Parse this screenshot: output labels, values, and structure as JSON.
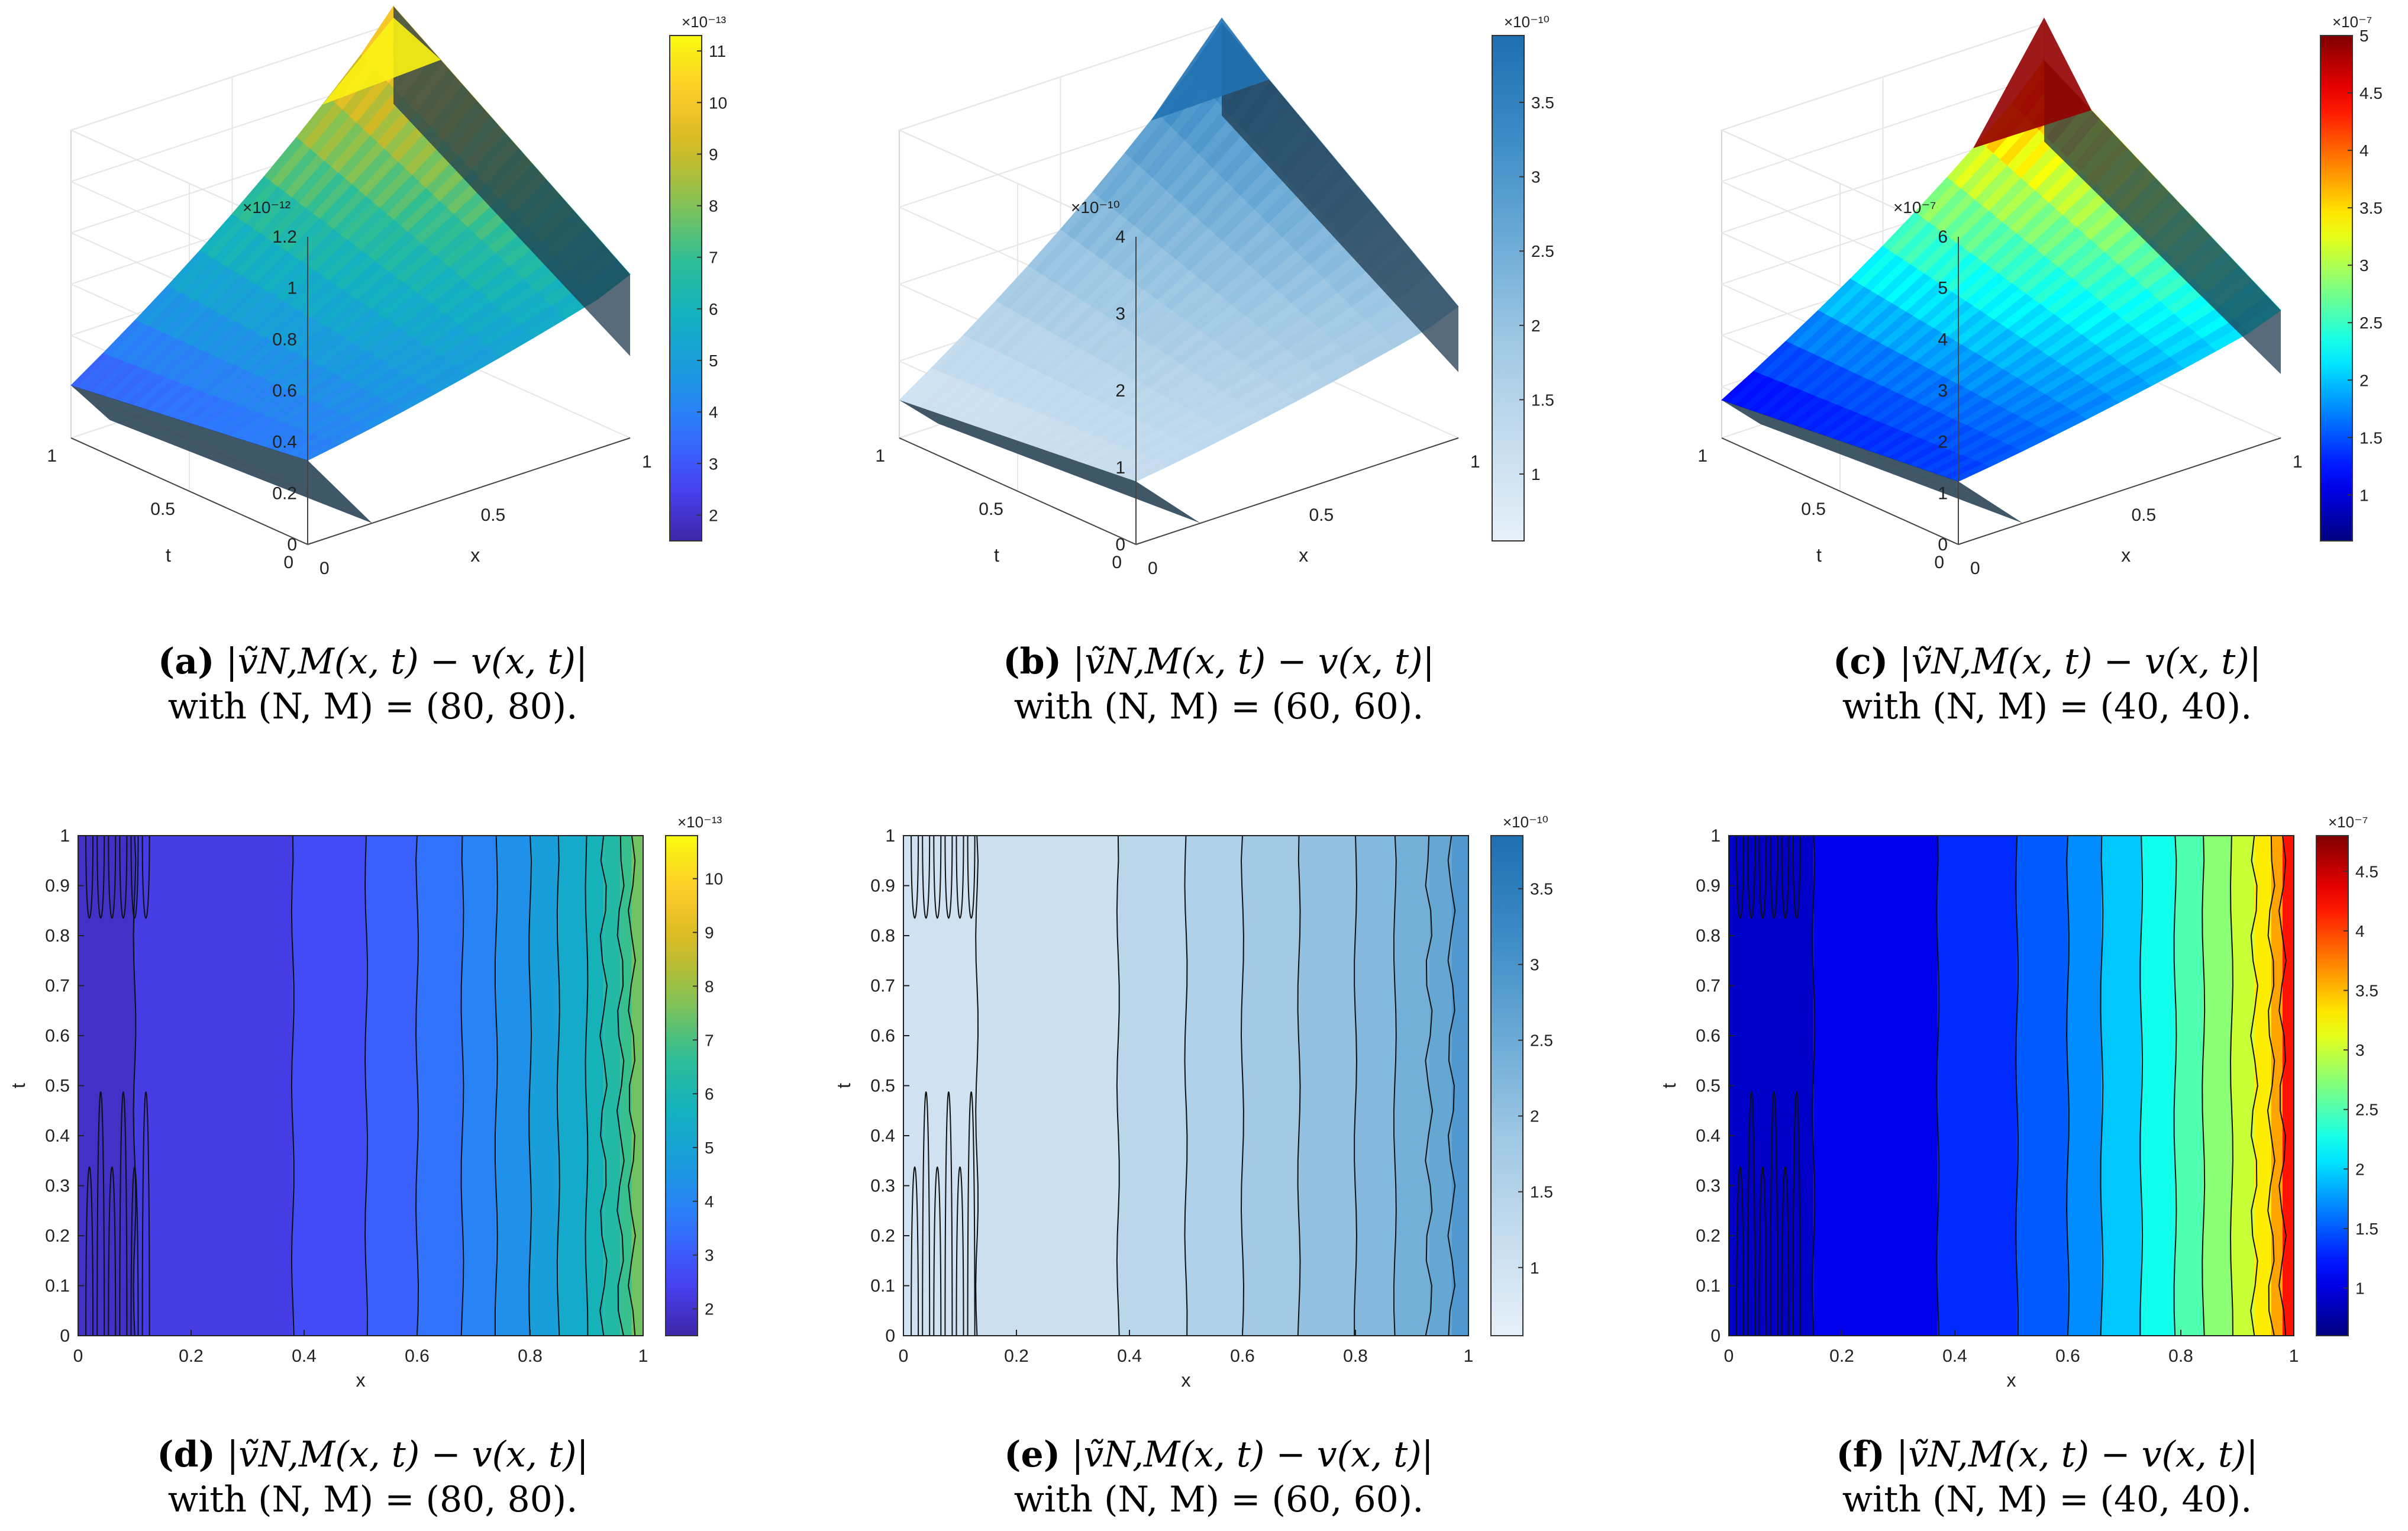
{
  "figure": {
    "panels": [
      {
        "id": "a",
        "caption": {
          "label": "(a)",
          "expr": "|ṽN,M(x, t) − v(x, t)|",
          "line2": "with (N, M) = (80, 80)."
        },
        "chart_data": {
          "type": "surface",
          "xlabel": "x",
          "ylabel": "t",
          "xticks": [
            "0",
            "0.5",
            "1"
          ],
          "tticks": [
            "0",
            "0.5",
            "1"
          ],
          "zexp": "×10⁻¹²",
          "zticks": [
            "0",
            "0.2",
            "0.4",
            "0.6",
            "0.8",
            "1",
            "1.2"
          ],
          "zlim": [
            0,
            1.2
          ],
          "corners": {
            "x0t0": 0.4,
            "x1t0": 0.62,
            "x0t1": 0.25,
            "x1t1": 1.25
          },
          "colormap": "parula",
          "colorbar": {
            "exp": "×10⁻¹³",
            "ticks": [
              "2",
              "3",
              "4",
              "5",
              "6",
              "7",
              "8",
              "9",
              "10",
              "11"
            ],
            "range": [
              1.5,
              11.3
            ]
          }
        }
      },
      {
        "id": "b",
        "caption": {
          "label": "(b)",
          "expr": "|ṽN,M(x, t) − v(x, t)|",
          "line2": "with (N, M) = (60, 60)."
        },
        "chart_data": {
          "type": "surface",
          "xlabel": "x",
          "ylabel": "t",
          "xticks": [
            "0",
            "0.5",
            "1"
          ],
          "tticks": [
            "0",
            "0.5",
            "1"
          ],
          "zexp": "×10⁻¹⁰",
          "zticks": [
            "0",
            "1",
            "2",
            "3",
            "4"
          ],
          "zlim": [
            0,
            4
          ],
          "corners": {
            "x0t0": 1.0,
            "x1t0": 1.65,
            "x0t1": 0.6,
            "x1t1": 3.95
          },
          "colormap": "blues",
          "colorbar": {
            "exp": "×10⁻¹⁰",
            "ticks": [
              "1",
              "1.5",
              "2",
              "2.5",
              "3",
              "3.5"
            ],
            "range": [
              0.55,
              3.95
            ]
          }
        }
      },
      {
        "id": "c",
        "caption": {
          "label": "(c)",
          "expr": "|ṽN,M(x, t) − v(x, t)|",
          "line2": "with (N, M) = (40, 40)."
        },
        "chart_data": {
          "type": "surface",
          "xlabel": "x",
          "ylabel": "t",
          "xticks": [
            "0",
            "0.5",
            "1"
          ],
          "tticks": [
            "0",
            "0.5",
            "1"
          ],
          "zexp": "×10⁻⁷",
          "zticks": [
            "0",
            "1",
            "2",
            "3",
            "4",
            "5",
            "6"
          ],
          "zlim": [
            0,
            6
          ],
          "corners": {
            "x0t0": 1.5,
            "x1t0": 2.4,
            "x0t1": 0.9,
            "x1t1": 5.2
          },
          "colormap": "jet",
          "colorbar": {
            "exp": "×10⁻⁷",
            "ticks": [
              "1",
              "1.5",
              "2",
              "2.5",
              "3",
              "3.5",
              "4",
              "4.5",
              "5"
            ],
            "range": [
              0.6,
              5.0
            ]
          }
        }
      },
      {
        "id": "d",
        "caption": {
          "label": "(d)",
          "expr": "|ṽN,M(x, t) − v(x, t)|",
          "line2": "with (N, M) = (80, 80)."
        },
        "chart_data": {
          "type": "contour",
          "xlabel": "x",
          "ylabel": "t",
          "xticks": [
            "0",
            "0.2",
            "0.4",
            "0.6",
            "0.8",
            "1"
          ],
          "yticks": [
            "0",
            "0.1",
            "0.2",
            "0.3",
            "0.4",
            "0.5",
            "0.6",
            "0.7",
            "0.8",
            "0.9",
            "1"
          ],
          "bands": [
            {
              "x0": 0.0,
              "x1": 0.1,
              "v": 1.9
            },
            {
              "x0": 0.1,
              "x1": 0.38,
              "v": 2.3
            },
            {
              "x0": 0.38,
              "x1": 0.51,
              "v": 2.7
            },
            {
              "x0": 0.51,
              "x1": 0.6,
              "v": 3.1
            },
            {
              "x0": 0.6,
              "x1": 0.68,
              "v": 3.5
            },
            {
              "x0": 0.68,
              "x1": 0.74,
              "v": 3.9
            },
            {
              "x0": 0.74,
              "x1": 0.8,
              "v": 4.3
            },
            {
              "x0": 0.8,
              "x1": 0.85,
              "v": 4.8
            },
            {
              "x0": 0.85,
              "x1": 0.9,
              "v": 5.3
            },
            {
              "x0": 0.9,
              "x1": 0.93,
              "v": 5.8
            },
            {
              "x0": 0.93,
              "x1": 0.96,
              "v": 6.3
            },
            {
              "x0": 0.96,
              "x1": 0.98,
              "v": 6.8
            },
            {
              "x0": 0.98,
              "x1": 1.0,
              "v": 7.5
            }
          ],
          "colormap": "parula",
          "colorbar": {
            "exp": "×10⁻¹³",
            "ticks": [
              "2",
              "3",
              "4",
              "5",
              "6",
              "7",
              "8",
              "9",
              "10"
            ],
            "range": [
              1.5,
              10.8
            ]
          }
        }
      },
      {
        "id": "e",
        "caption": {
          "label": "(e)",
          "expr": "|ṽN,M(x, t) − v(x, t)|",
          "line2": "with (N, M) = (60, 60)."
        },
        "chart_data": {
          "type": "contour",
          "xlabel": "x",
          "ylabel": "t",
          "xticks": [
            "0",
            "0.2",
            "0.4",
            "0.6",
            "0.8",
            "1"
          ],
          "yticks": [
            "0",
            "0.1",
            "0.2",
            "0.3",
            "0.4",
            "0.5",
            "0.6",
            "0.7",
            "0.8",
            "0.9",
            "1"
          ],
          "bands": [
            {
              "x0": 0.0,
              "x1": 0.13,
              "v": 1.0
            },
            {
              "x0": 0.13,
              "x1": 0.38,
              "v": 1.1
            },
            {
              "x0": 0.38,
              "x1": 0.5,
              "v": 1.4
            },
            {
              "x0": 0.5,
              "x1": 0.6,
              "v": 1.6
            },
            {
              "x0": 0.6,
              "x1": 0.7,
              "v": 1.8
            },
            {
              "x0": 0.7,
              "x1": 0.8,
              "v": 2.0
            },
            {
              "x0": 0.8,
              "x1": 0.87,
              "v": 2.2
            },
            {
              "x0": 0.87,
              "x1": 0.93,
              "v": 2.4
            },
            {
              "x0": 0.93,
              "x1": 0.97,
              "v": 2.6
            },
            {
              "x0": 0.97,
              "x1": 1.0,
              "v": 2.9
            }
          ],
          "colormap": "blues",
          "colorbar": {
            "exp": "×10⁻¹⁰",
            "ticks": [
              "1",
              "1.5",
              "2",
              "2.5",
              "3",
              "3.5"
            ],
            "range": [
              0.55,
              3.85
            ]
          }
        }
      },
      {
        "id": "f",
        "caption": {
          "label": "(f)",
          "expr": "|ṽN,M(x, t) − v(x, t)|",
          "line2": "with (N, M) = (40, 40)."
        },
        "chart_data": {
          "type": "contour",
          "xlabel": "x",
          "ylabel": "t",
          "xticks": [
            "0",
            "0.2",
            "0.4",
            "0.6",
            "0.8",
            "1"
          ],
          "yticks": [
            "0",
            "0.1",
            "0.2",
            "0.3",
            "0.4",
            "0.5",
            "0.6",
            "0.7",
            "0.8",
            "0.9",
            "1"
          ],
          "bands": [
            {
              "x0": 0.0,
              "x1": 0.15,
              "v": 0.9
            },
            {
              "x0": 0.15,
              "x1": 0.37,
              "v": 1.05
            },
            {
              "x0": 0.37,
              "x1": 0.51,
              "v": 1.3
            },
            {
              "x0": 0.51,
              "x1": 0.6,
              "v": 1.5
            },
            {
              "x0": 0.6,
              "x1": 0.66,
              "v": 1.7
            },
            {
              "x0": 0.66,
              "x1": 0.73,
              "v": 1.95
            },
            {
              "x0": 0.73,
              "x1": 0.79,
              "v": 2.25
            },
            {
              "x0": 0.79,
              "x1": 0.84,
              "v": 2.5
            },
            {
              "x0": 0.84,
              "x1": 0.89,
              "v": 2.75
            },
            {
              "x0": 0.89,
              "x1": 0.93,
              "v": 3.0
            },
            {
              "x0": 0.93,
              "x1": 0.96,
              "v": 3.3
            },
            {
              "x0": 0.96,
              "x1": 0.98,
              "v": 3.6
            },
            {
              "x0": 0.98,
              "x1": 1.0,
              "v": 4.2
            }
          ],
          "colormap": "jet",
          "colorbar": {
            "exp": "×10⁻⁷",
            "ticks": [
              "1",
              "1.5",
              "2",
              "2.5",
              "3",
              "3.5",
              "4",
              "4.5"
            ],
            "range": [
              0.6,
              4.8
            ]
          }
        }
      }
    ]
  }
}
